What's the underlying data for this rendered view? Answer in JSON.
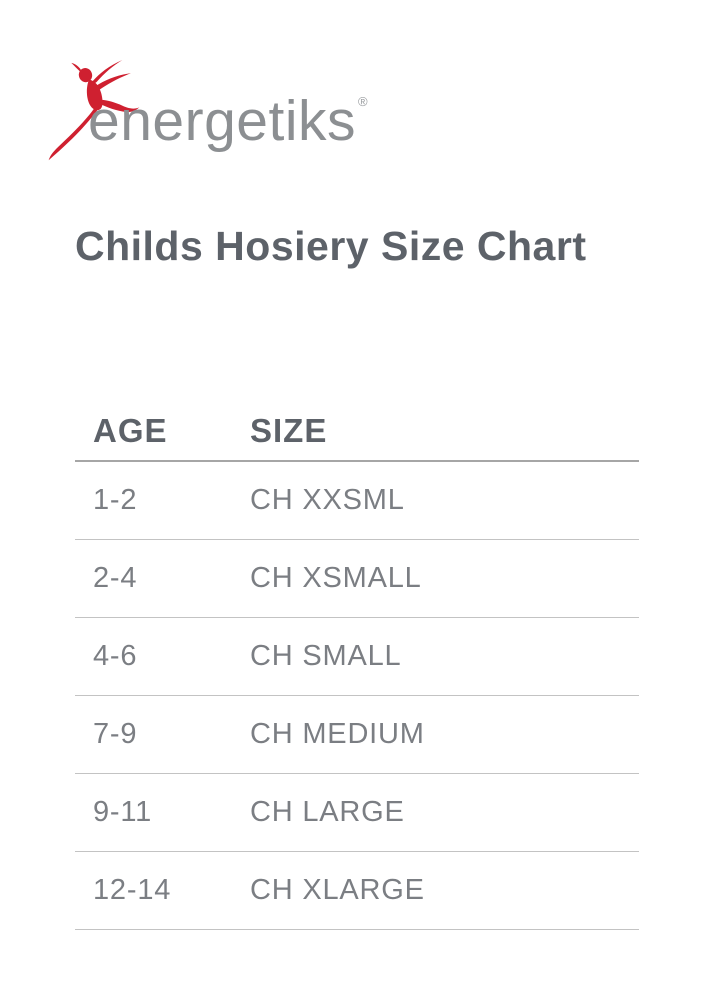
{
  "logo": {
    "brand": "energetiks",
    "registered_mark": "®",
    "dancer_icon_color": "#cf2030",
    "brand_text_color": "#8c8f92"
  },
  "page": {
    "title": "Childs Hosiery Size Chart",
    "title_color": "#5d6269",
    "background_color": "#ffffff"
  },
  "table": {
    "headers": [
      "AGE",
      "SIZE"
    ],
    "rows": [
      {
        "age": "1-2",
        "size": "CH XXSML"
      },
      {
        "age": "2-4",
        "size": "CH XSMALL"
      },
      {
        "age": "4-6",
        "size": "CH SMALL"
      },
      {
        "age": "7-9",
        "size": "CH MEDIUM"
      },
      {
        "age": "9-11",
        "size": "CH LARGE"
      },
      {
        "age": "12-14",
        "size": "CH XLARGE"
      }
    ],
    "header_rule_color": "#a6a6a6",
    "row_rule_color": "#c3c3c3"
  }
}
